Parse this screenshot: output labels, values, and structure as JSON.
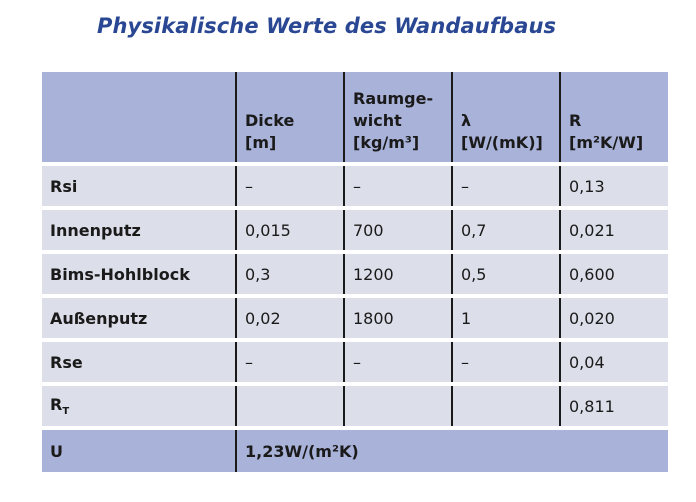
{
  "title": "Physikalische Werte des Wandaufbaus",
  "header": {
    "col0": "",
    "dicke_line1": "Dicke",
    "dicke_line2": "[m]",
    "raum_line1": "Raumge-",
    "raum_line2": "wicht",
    "raum_line3": "[kg/m³]",
    "lambda_line1": "λ",
    "lambda_line2": "[W/(mK)]",
    "r_line1": "R",
    "r_line2": "[m²K/W]"
  },
  "rows": [
    {
      "label": "Rsi",
      "dicke": "–",
      "raumgewicht": "–",
      "lambda": "–",
      "r": "0,13"
    },
    {
      "label": "Innenputz",
      "dicke": "0,015",
      "raumgewicht": "700",
      "lambda": "0,7",
      "r": "0,021"
    },
    {
      "label": "Bims-Hohlblock",
      "dicke": "0,3",
      "raumgewicht": "1200",
      "lambda": "0,5",
      "r": "0,600"
    },
    {
      "label": "Außenputz",
      "dicke": "0,02",
      "raumgewicht": "1800",
      "lambda": "1",
      "r": "0,020"
    },
    {
      "label": "Rse",
      "dicke": "–",
      "raumgewicht": "–",
      "lambda": "–",
      "r": "0,04"
    },
    {
      "label": "R",
      "label_sub": "T",
      "dicke": "",
      "raumgewicht": "",
      "lambda": "",
      "r": "0,811"
    }
  ],
  "footer": {
    "label": "U",
    "value": "1,23W/(m²K)"
  }
}
